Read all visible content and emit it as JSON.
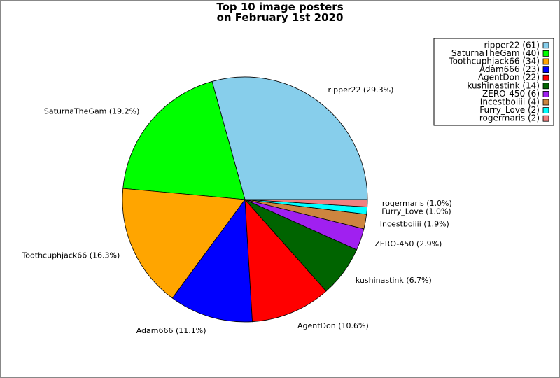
{
  "chart_data": {
    "type": "pie",
    "title_lines": [
      "Top 10 image posters",
      "on February 1st 2020"
    ],
    "slices": [
      {
        "name": "ripper22",
        "value": 61,
        "percent": "29.3%",
        "color": "#87ceeb"
      },
      {
        "name": "SaturnaTheGam",
        "value": 40,
        "percent": "19.2%",
        "color": "#00ff00"
      },
      {
        "name": "Toothcuphjack66",
        "value": 34,
        "percent": "16.3%",
        "color": "#ffa500"
      },
      {
        "name": "Adam666",
        "value": 23,
        "percent": "11.1%",
        "color": "#0000ff"
      },
      {
        "name": "AgentDon",
        "value": 22,
        "percent": "10.6%",
        "color": "#ff0000"
      },
      {
        "name": "kushinastink",
        "value": 14,
        "percent": "6.7%",
        "color": "#006400"
      },
      {
        "name": "ZERO-450",
        "value": 6,
        "percent": "2.9%",
        "color": "#a020f0"
      },
      {
        "name": "Incestboiiii",
        "value": 4,
        "percent": "1.9%",
        "color": "#cd853f"
      },
      {
        "name": "Furry_Love",
        "value": 2,
        "percent": "1.0%",
        "color": "#00ffff"
      },
      {
        "name": "rogermaris",
        "value": 2,
        "percent": "1.0%",
        "color": "#f08080"
      }
    ],
    "legend_position": "top-right"
  }
}
